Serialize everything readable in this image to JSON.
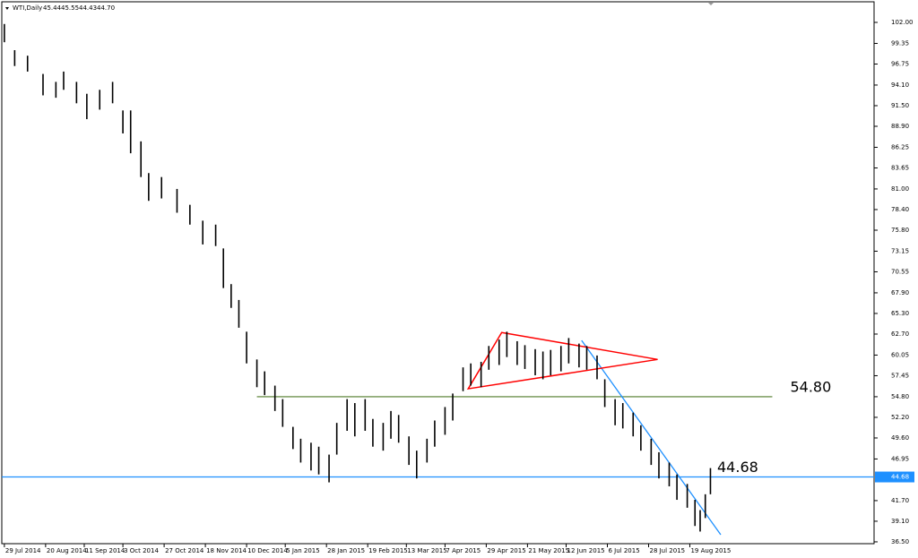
{
  "chart_data": {
    "type": "ohlc",
    "title": "WTI,Daily",
    "ohlc_labels": [
      "45.44",
      "45.55",
      "44.43",
      "44.70"
    ],
    "x": [
      0,
      4,
      9,
      15,
      20,
      23,
      28,
      32,
      37,
      42,
      46,
      49,
      53,
      56,
      61,
      67,
      72,
      77,
      82,
      85,
      88,
      91,
      94,
      98,
      101,
      105,
      108,
      112,
      115,
      119,
      122,
      126,
      129,
      133,
      136,
      140,
      143,
      147,
      150,
      153,
      157,
      160,
      164,
      167,
      171,
      174,
      178,
      181,
      185,
      188,
      192,
      195,
      199,
      202,
      206,
      209,
      212,
      216,
      219,
      223,
      226,
      230,
      233,
      237,
      240,
      244,
      247,
      251,
      254,
      258,
      261,
      265,
      268,
      270,
      272,
      274
    ],
    "high": [
      101.8,
      98.5,
      97.8,
      95.5,
      94.5,
      95.8,
      94.5,
      93.0,
      93.5,
      94.5,
      90.9,
      90.9,
      87.0,
      83.0,
      82.5,
      81.0,
      79.0,
      77.0,
      76.5,
      73.5,
      69.0,
      67.0,
      63.0,
      59.5,
      58.0,
      56.2,
      54.5,
      51.0,
      49.5,
      49.0,
      48.5,
      47.5,
      51.5,
      54.5,
      54.0,
      54.5,
      52.0,
      51.5,
      53.0,
      52.5,
      49.8,
      48.0,
      49.5,
      51.8,
      53.5,
      55.2,
      58.5,
      59.0,
      59.2,
      61.2,
      62.0,
      63.0,
      61.8,
      61.3,
      60.8,
      60.5,
      60.7,
      61.2,
      62.2,
      61.5,
      61.2,
      60.0,
      57.0,
      54.5,
      54.0,
      52.8,
      51.2,
      49.5,
      47.8,
      46.5,
      45.0,
      43.8,
      41.8,
      40.5,
      42.5,
      45.8
    ],
    "low": [
      99.5,
      96.5,
      95.8,
      92.8,
      92.5,
      93.5,
      91.8,
      89.8,
      91.0,
      91.8,
      88.0,
      85.5,
      82.5,
      79.5,
      79.8,
      78.0,
      76.5,
      74.0,
      73.8,
      68.5,
      66.0,
      63.5,
      59.0,
      56.0,
      55.0,
      53.0,
      51.0,
      48.2,
      46.5,
      45.5,
      45.0,
      44.0,
      47.5,
      50.5,
      49.8,
      50.5,
      48.5,
      48.0,
      49.5,
      49.0,
      46.2,
      44.5,
      46.5,
      48.5,
      50.0,
      51.8,
      55.5,
      56.2,
      56.0,
      58.2,
      58.8,
      59.8,
      58.8,
      58.3,
      57.5,
      57.0,
      57.5,
      58.0,
      59.0,
      58.5,
      58.2,
      57.0,
      53.5,
      51.2,
      50.8,
      49.8,
      48.0,
      46.2,
      44.5,
      43.5,
      41.8,
      40.8,
      38.5,
      37.8,
      39.5,
      42.5
    ],
    "color": "#000000",
    "xlim": [
      -1,
      337.5
    ],
    "xticks": [
      {
        "value": 0,
        "label": "29 Jul 2014"
      },
      {
        "value": 16,
        "label": "20 Aug 2014"
      },
      {
        "value": 31,
        "label": "11 Sep 2014"
      },
      {
        "value": 46,
        "label": "3 Oct 2014"
      },
      {
        "value": 62,
        "label": "27 Oct 2014"
      },
      {
        "value": 78,
        "label": "18 Nov 2014"
      },
      {
        "value": 94,
        "label": "10 Dec 2014"
      },
      {
        "value": 109,
        "label": "5 Jan 2015"
      },
      {
        "value": 125,
        "label": "28 Jan 2015"
      },
      {
        "value": 141,
        "label": "19 Feb 2015"
      },
      {
        "value": 156,
        "label": "13 Mar 2015"
      },
      {
        "value": 171,
        "label": "7 Apr 2015"
      },
      {
        "value": 187,
        "label": "29 Apr 2015"
      },
      {
        "value": 203,
        "label": "21 May 2015"
      },
      {
        "value": 218,
        "label": "12 Jun 2015"
      },
      {
        "value": 234,
        "label": "6 Jul 2015"
      },
      {
        "value": 250,
        "label": "28 Jul 2015"
      },
      {
        "value": 266,
        "label": "19 Aug 2015"
      }
    ],
    "ylim": [
      36.27,
      104.26
    ],
    "yticks": [
      {
        "value": 102,
        "label": "102.00"
      },
      {
        "value": 99.35,
        "label": "99.35"
      },
      {
        "value": 96.75,
        "label": "96.75"
      },
      {
        "value": 94.1,
        "label": "94.10"
      },
      {
        "value": 91.5,
        "label": "91.50"
      },
      {
        "value": 88.9,
        "label": "88.90"
      },
      {
        "value": 86.25,
        "label": "86.25"
      },
      {
        "value": 83.65,
        "label": "83.65"
      },
      {
        "value": 81,
        "label": "81.00"
      },
      {
        "value": 78.4,
        "label": "78.40"
      },
      {
        "value": 75.8,
        "label": "75.80"
      },
      {
        "value": 73.15,
        "label": "73.15"
      },
      {
        "value": 70.55,
        "label": "70.55"
      },
      {
        "value": 67.9,
        "label": "67.90"
      },
      {
        "value": 65.3,
        "label": "65.30"
      },
      {
        "value": 62.7,
        "label": "62.70"
      },
      {
        "value": 60.05,
        "label": "60.05"
      },
      {
        "value": 57.45,
        "label": "57.45"
      },
      {
        "value": 54.8,
        "label": "54.80"
      },
      {
        "value": 52.2,
        "label": "52.20"
      },
      {
        "value": 49.6,
        "label": "49.60"
      },
      {
        "value": 46.95,
        "label": "46.95"
      },
      {
        "value": 41.7,
        "label": "41.70"
      },
      {
        "value": 39.1,
        "label": "39.10"
      },
      {
        "value": 36.5,
        "label": "36.50"
      }
    ],
    "price_tag": {
      "value": 44.68,
      "label": "44.68",
      "color": "#1e90ff"
    },
    "levels": [
      {
        "value": 54.8,
        "label": "54.80",
        "color": "#4f7a28",
        "from": 98,
        "to": 298
      },
      {
        "value": 44.68,
        "label": "44.68",
        "color": "#1e90ff"
      }
    ],
    "trendline": {
      "color": "#1e90ff",
      "x": [
        224,
        278
      ],
      "y": [
        61.9,
        37.4
      ]
    },
    "triangle": {
      "color": "#ff0000",
      "x": [
        193,
        253.5,
        180
      ],
      "y": [
        62.9,
        59.5,
        55.8
      ]
    }
  }
}
